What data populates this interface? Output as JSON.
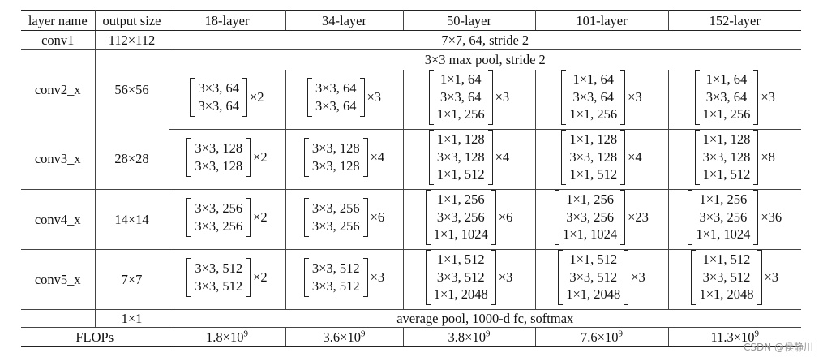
{
  "table": {
    "headers": [
      "layer name",
      "output size",
      "18-layer",
      "34-layer",
      "50-layer",
      "101-layer",
      "152-layer"
    ],
    "conv1": {
      "name": "conv1",
      "size": "112×112",
      "spec": "7×7, 64, stride 2"
    },
    "conv2": {
      "name": "conv2_x",
      "size": "56×56",
      "pool": "3×3 max pool, stride 2",
      "blocks": [
        {
          "rows": [
            "3×3, 64",
            "3×3, 64"
          ],
          "mult": "×2"
        },
        {
          "rows": [
            "3×3, 64",
            "3×3, 64"
          ],
          "mult": "×3"
        },
        {
          "rows": [
            "1×1, 64",
            "3×3, 64",
            "1×1, 256"
          ],
          "mult": "×3"
        },
        {
          "rows": [
            "1×1, 64",
            "3×3, 64",
            "1×1, 256"
          ],
          "mult": "×3"
        },
        {
          "rows": [
            "1×1, 64",
            "3×3, 64",
            "1×1, 256"
          ],
          "mult": "×3"
        }
      ]
    },
    "conv3": {
      "name": "conv3_x",
      "size": "28×28",
      "blocks": [
        {
          "rows": [
            "3×3, 128",
            "3×3, 128"
          ],
          "mult": "×2"
        },
        {
          "rows": [
            "3×3, 128",
            "3×3, 128"
          ],
          "mult": "×4"
        },
        {
          "rows": [
            "1×1, 128",
            "3×3, 128",
            "1×1, 512"
          ],
          "mult": "×4"
        },
        {
          "rows": [
            "1×1, 128",
            "3×3, 128",
            "1×1, 512"
          ],
          "mult": "×4"
        },
        {
          "rows": [
            "1×1, 128",
            "3×3, 128",
            "1×1, 512"
          ],
          "mult": "×8"
        }
      ]
    },
    "conv4": {
      "name": "conv4_x",
      "size": "14×14",
      "blocks": [
        {
          "rows": [
            "3×3, 256",
            "3×3, 256"
          ],
          "mult": "×2"
        },
        {
          "rows": [
            "3×3, 256",
            "3×3, 256"
          ],
          "mult": "×6"
        },
        {
          "rows": [
            "1×1, 256",
            "3×3, 256",
            "1×1, 1024"
          ],
          "mult": "×6"
        },
        {
          "rows": [
            "1×1, 256",
            "3×3, 256",
            "1×1, 1024"
          ],
          "mult": "×23"
        },
        {
          "rows": [
            "1×1, 256",
            "3×3, 256",
            "1×1, 1024"
          ],
          "mult": "×36"
        }
      ]
    },
    "conv5": {
      "name": "conv5_x",
      "size": "7×7",
      "blocks": [
        {
          "rows": [
            "3×3, 512",
            "3×3, 512"
          ],
          "mult": "×2"
        },
        {
          "rows": [
            "3×3, 512",
            "3×3, 512"
          ],
          "mult": "×3"
        },
        {
          "rows": [
            "1×1, 512",
            "3×3, 512",
            "1×1, 2048"
          ],
          "mult": "×3"
        },
        {
          "rows": [
            "1×1, 512",
            "3×3, 512",
            "1×1, 2048"
          ],
          "mult": "×3"
        },
        {
          "rows": [
            "1×1, 512",
            "3×3, 512",
            "1×1, 2048"
          ],
          "mult": "×3"
        }
      ]
    },
    "final": {
      "size": "1×1",
      "spec": "average pool, 1000-d fc, softmax"
    },
    "flops": {
      "label": "FLOPs",
      "values": [
        {
          "base": "1.8×10",
          "exp": "9"
        },
        {
          "base": "3.6×10",
          "exp": "9"
        },
        {
          "base": "3.8×10",
          "exp": "9"
        },
        {
          "base": "7.6×10",
          "exp": "9"
        },
        {
          "base": "11.3×10",
          "exp": "9"
        }
      ]
    }
  },
  "watermark": "CSDN @侯静川"
}
